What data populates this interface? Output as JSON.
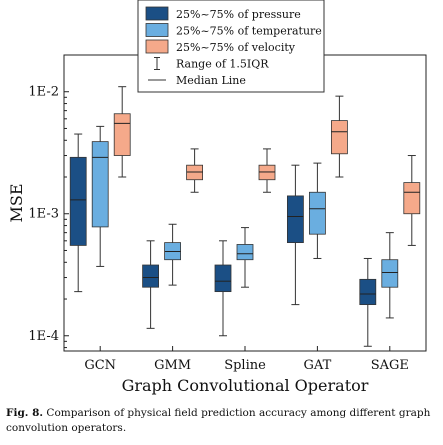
{
  "chart_data": {
    "type": "boxplot",
    "xlabel": "Graph Convolutional Operator",
    "ylabel": "MSE",
    "yscale": "log",
    "ylim": [
      7.5e-05,
      0.02
    ],
    "yticks": [
      {
        "value": 0.0001,
        "label": "1E-4"
      },
      {
        "value": 0.001,
        "label": "1E-3"
      },
      {
        "value": 0.01,
        "label": "1E-2"
      }
    ],
    "categories": [
      "GCN",
      "GMM",
      "Spline",
      "GAT",
      "SAGE"
    ],
    "series": [
      {
        "name": "25%~75% of pressure",
        "color": "#1b4f85",
        "boxes": [
          {
            "q1": 0.00055,
            "median": 0.0013,
            "q3": 0.0029,
            "whisker_low": 0.00023,
            "whisker_high": 0.0045
          },
          {
            "q1": 0.00025,
            "median": 0.0003,
            "q3": 0.00038,
            "whisker_low": 0.000115,
            "whisker_high": 0.0006
          },
          {
            "q1": 0.00023,
            "median": 0.00028,
            "q3": 0.00038,
            "whisker_low": 0.0001,
            "whisker_high": 0.0006
          },
          {
            "q1": 0.00058,
            "median": 0.00095,
            "q3": 0.0014,
            "whisker_low": 0.00018,
            "whisker_high": 0.0025
          },
          {
            "q1": 0.00018,
            "median": 0.00022,
            "q3": 0.00029,
            "whisker_low": 8.2e-05,
            "whisker_high": 0.00043
          }
        ]
      },
      {
        "name": "25%~75%  of temperature",
        "color": "#6aaee0",
        "boxes": [
          {
            "q1": 0.00078,
            "median": 0.0029,
            "q3": 0.0039,
            "whisker_low": 0.00037,
            "whisker_high": 0.0052
          },
          {
            "q1": 0.00042,
            "median": 0.00049,
            "q3": 0.00058,
            "whisker_low": 0.00026,
            "whisker_high": 0.00082
          },
          {
            "q1": 0.00042,
            "median": 0.00047,
            "q3": 0.00056,
            "whisker_low": 0.00025,
            "whisker_high": 0.00077
          },
          {
            "q1": 0.00068,
            "median": 0.0011,
            "q3": 0.0015,
            "whisker_low": 0.00043,
            "whisker_high": 0.0026
          },
          {
            "q1": 0.00025,
            "median": 0.00033,
            "q3": 0.00042,
            "whisker_low": 0.00014,
            "whisker_high": 0.0007
          }
        ]
      },
      {
        "name": "25%~75% of velocity",
        "color": "#f5a98a",
        "boxes": [
          {
            "q1": 0.003,
            "median": 0.0055,
            "q3": 0.0066,
            "whisker_low": 0.002,
            "whisker_high": 0.011
          },
          {
            "q1": 0.0019,
            "median": 0.0022,
            "q3": 0.0025,
            "whisker_low": 0.0015,
            "whisker_high": 0.0034
          },
          {
            "q1": 0.0019,
            "median": 0.0022,
            "q3": 0.0025,
            "whisker_low": 0.0015,
            "whisker_high": 0.0034
          },
          {
            "q1": 0.0031,
            "median": 0.0047,
            "q3": 0.0058,
            "whisker_low": 0.002,
            "whisker_high": 0.0092
          },
          {
            "q1": 0.001,
            "median": 0.0015,
            "q3": 0.0018,
            "whisker_low": 0.00055,
            "whisker_high": 0.003
          }
        ]
      }
    ],
    "legend": {
      "position": "top-center",
      "entries": [
        "25%~75% of pressure",
        "25%~75%  of temperature",
        "25%~75% of velocity",
        "Range of 1.5IQR",
        "Median Line"
      ]
    }
  },
  "caption": {
    "label": "Fig. 8.",
    "text": "Comparison of physical field prediction accuracy among different graph convolution operators."
  }
}
